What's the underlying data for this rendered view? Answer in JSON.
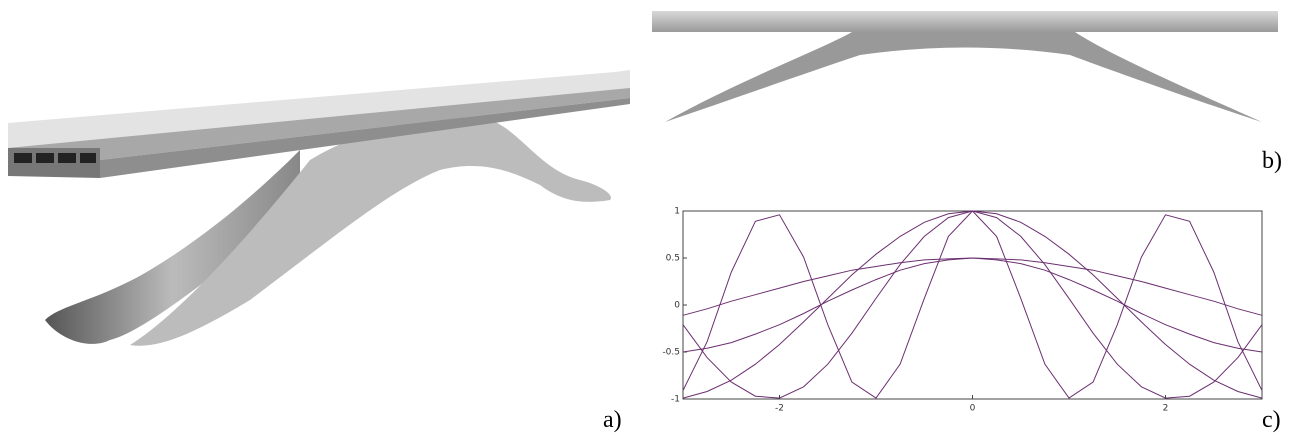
{
  "panel_labels": [
    "a)",
    "b)",
    "c)"
  ],
  "chart_data": {
    "type": "line",
    "x": [
      -3,
      -2.75,
      -2.5,
      -2.25,
      -2,
      -1.75,
      -1.5,
      -1.25,
      -1,
      -0.75,
      -0.5,
      -0.25,
      0,
      0.25,
      0.5,
      0.75,
      1,
      1.25,
      1.5,
      1.75,
      2,
      2.25,
      2.5,
      2.75,
      3
    ],
    "series": [
      {
        "color": "#6b2f70",
        "values": [
          -0.91,
          -0.39,
          0.35,
          0.89,
          0.96,
          0.51,
          -0.21,
          -0.82,
          -0.99,
          -0.63,
          0.07,
          0.73,
          1,
          0.73,
          0.07,
          -0.63,
          -0.99,
          -0.82,
          -0.21,
          0.51,
          0.96,
          0.89,
          0.35,
          -0.39,
          -0.91
        ]
      },
      {
        "color": "#6b2f70",
        "values": [
          -0.21,
          -0.56,
          -0.82,
          -0.97,
          -0.99,
          -0.87,
          -0.63,
          -0.3,
          0.07,
          0.43,
          0.73,
          0.93,
          1,
          0.93,
          0.73,
          0.43,
          0.07,
          -0.3,
          -0.63,
          -0.87,
          -0.99,
          -0.97,
          -0.82,
          -0.56,
          -0.21
        ]
      },
      {
        "color": "#6b2f70",
        "values": [
          -0.99,
          -0.92,
          -0.8,
          -0.63,
          -0.42,
          -0.18,
          0.07,
          0.32,
          0.54,
          0.73,
          0.88,
          0.97,
          1,
          0.97,
          0.88,
          0.73,
          0.54,
          0.32,
          0.07,
          -0.18,
          -0.42,
          -0.63,
          -0.8,
          -0.92,
          -0.99
        ]
      },
      {
        "color": "#6b2f70",
        "values": [
          -0.5,
          -0.46,
          -0.4,
          -0.31,
          -0.21,
          -0.09,
          0.04,
          0.16,
          0.27,
          0.37,
          0.44,
          0.48,
          0.5,
          0.48,
          0.44,
          0.37,
          0.27,
          0.16,
          0.04,
          -0.09,
          -0.21,
          -0.31,
          -0.4,
          -0.46,
          -0.5
        ]
      },
      {
        "color": "#6b2f70",
        "values": [
          -0.11,
          -0.04,
          0.04,
          0.11,
          0.18,
          0.25,
          0.31,
          0.37,
          0.41,
          0.45,
          0.48,
          0.49,
          0.5,
          0.49,
          0.48,
          0.45,
          0.41,
          0.37,
          0.31,
          0.25,
          0.18,
          0.11,
          0.04,
          -0.04,
          -0.11
        ]
      }
    ],
    "xlim": [
      -3,
      3
    ],
    "xticks": [
      -2,
      0,
      2
    ],
    "ylim": [
      -1,
      1
    ],
    "yticks": [
      -1,
      -0.5,
      0,
      0.5,
      1
    ]
  }
}
